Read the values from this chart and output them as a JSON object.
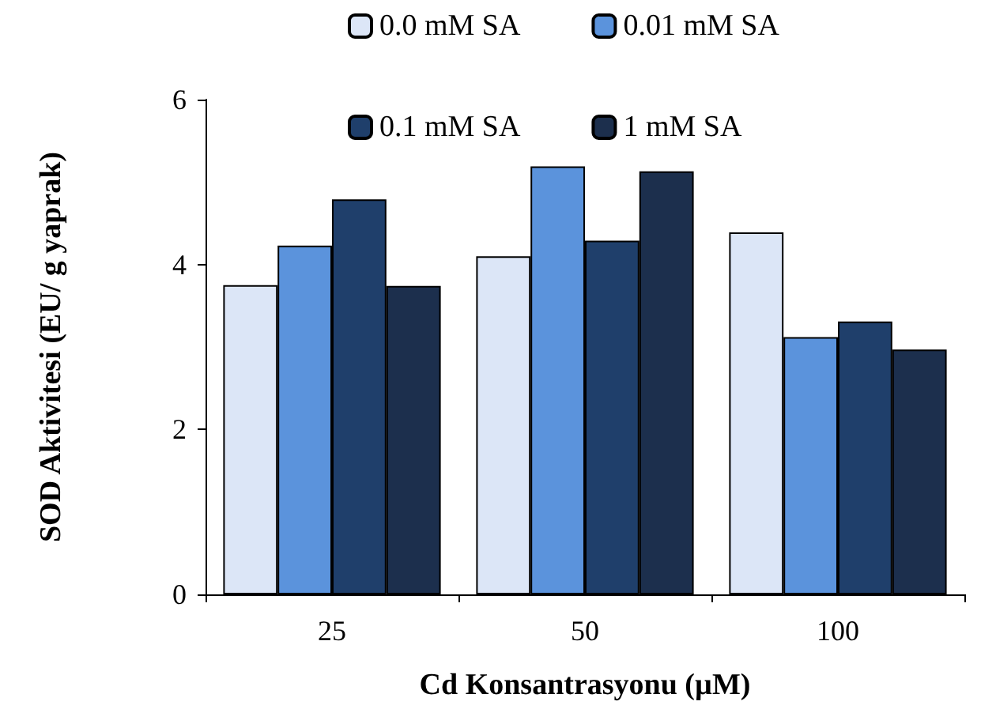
{
  "chart_data": {
    "type": "bar",
    "xlabel": "Cd Konsantrasyonu (µM)",
    "ylabel": "SOD Aktivitesi (EU/ g yaprak)",
    "categories": [
      "25",
      "50",
      "100"
    ],
    "series": [
      {
        "name": "0.0 mM SA",
        "color": "#dce6f7",
        "values": [
          3.75,
          4.1,
          4.39
        ]
      },
      {
        "name": "0.01 mM SA",
        "color": "#5b93dc",
        "values": [
          4.23,
          5.19,
          3.12
        ]
      },
      {
        "name": "0.1 mM SA",
        "color": "#1f3f6b",
        "values": [
          4.79,
          4.29,
          3.31
        ]
      },
      {
        "name": "1 mM SA",
        "color": "#1c2f4d",
        "values": [
          3.74,
          5.13,
          2.97
        ]
      }
    ],
    "ylim": [
      0,
      6
    ],
    "yticks": [
      0,
      2,
      4,
      6
    ],
    "grid": false,
    "legend": "top"
  }
}
